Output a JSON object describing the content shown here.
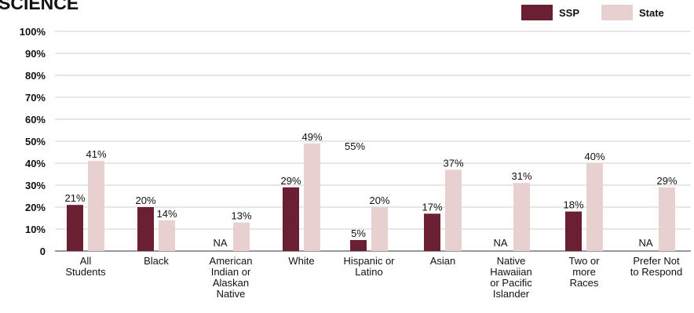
{
  "chart_data": {
    "type": "bar",
    "title": "SCIENCE",
    "categories": [
      [
        "All",
        "Students"
      ],
      [
        "Black"
      ],
      [
        "American",
        "Indian or",
        "Alaskan",
        "Native"
      ],
      [
        "White"
      ],
      [
        "Hispanic or",
        "Latino"
      ],
      [
        "Asian"
      ],
      [
        "Native",
        "Hawaiian",
        "or Pacific",
        "Islander"
      ],
      [
        "Two or",
        "more",
        "Races"
      ],
      [
        "Prefer Not",
        "to Respond"
      ]
    ],
    "series": [
      {
        "name": "SSP",
        "color": "#6b1f33",
        "values": [
          21,
          20,
          null,
          29,
          5,
          17,
          null,
          18,
          null
        ],
        "labels": [
          "21%",
          "20%",
          "NA",
          "29%",
          "5%",
          "17%",
          "NA",
          "18%",
          "NA"
        ]
      },
      {
        "name": "State",
        "color": "#e8d0d0",
        "values": [
          41,
          14,
          13,
          49,
          20,
          37,
          31,
          40,
          29
        ],
        "labels": [
          "41%",
          "14%",
          "13%",
          "49%",
          "20%",
          "37%",
          "31%",
          "40%",
          "29%"
        ]
      }
    ],
    "annotations": [
      {
        "text": "55%",
        "near_category": 4
      }
    ],
    "yticks": [
      "0",
      "10%",
      "20%",
      "30%",
      "40%",
      "50%",
      "60%",
      "70%",
      "80%",
      "90%",
      "100%"
    ],
    "ylim": [
      0,
      100
    ],
    "grid": true,
    "legend": "top-right"
  }
}
